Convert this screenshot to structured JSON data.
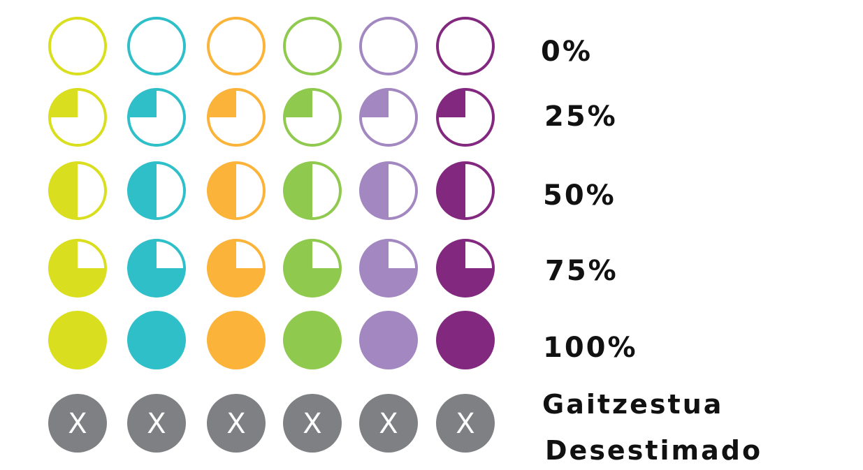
{
  "palette": [
    "#d9df1e",
    "#2fbfc9",
    "#fbb33a",
    "#8fc94d",
    "#a287c1",
    "#82287f"
  ],
  "rejected_fill": "#7f8083",
  "rejected_mark": "X",
  "rows": [
    {
      "label": "0%",
      "progress": 0
    },
    {
      "label": "25%",
      "progress": 0.25
    },
    {
      "label": "50%",
      "progress": 0.5
    },
    {
      "label": "75%",
      "progress": 0.75
    },
    {
      "label": "100%",
      "progress": 1
    },
    {
      "label": "Gaitzestua",
      "label_2": "Desestimado",
      "rejected": true
    }
  ]
}
